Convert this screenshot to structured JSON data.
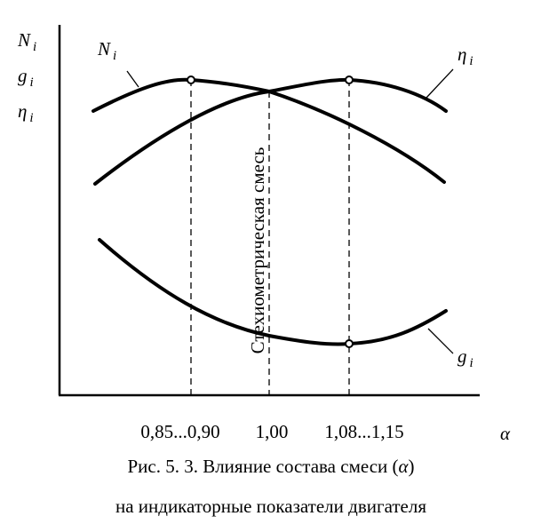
{
  "y_axis": {
    "labels": [
      {
        "symbol": "N",
        "sub": "i"
      },
      {
        "symbol": "g",
        "sub": "i"
      },
      {
        "symbol": "η",
        "sub": "i"
      }
    ]
  },
  "curves": [
    {
      "symbol": "N",
      "sub": "i"
    },
    {
      "symbol": "η",
      "sub": "i"
    },
    {
      "symbol": "g",
      "sub": "i"
    }
  ],
  "x_axis": {
    "label": "α",
    "ticks": [
      "0,85...0,90",
      "1,00",
      "1,08...1,15"
    ]
  },
  "annotation": "Стехиометрическая смесь",
  "caption": {
    "line1": [
      "Рис. 5. 3. Влияние состава смеси (",
      "α",
      ")"
    ],
    "line2": "на индикаторные показатели двигателя"
  }
}
